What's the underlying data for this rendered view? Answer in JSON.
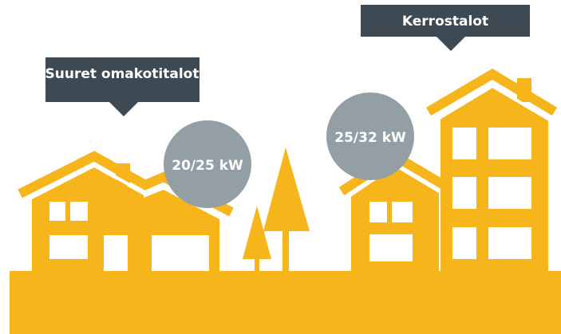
{
  "callouts": [
    {
      "label": "Suuret omakotitalot"
    },
    {
      "label": "Kerrostalot"
    }
  ],
  "badges": [
    {
      "label": "20/25 kW"
    },
    {
      "label": "25/32 kW"
    }
  ]
}
